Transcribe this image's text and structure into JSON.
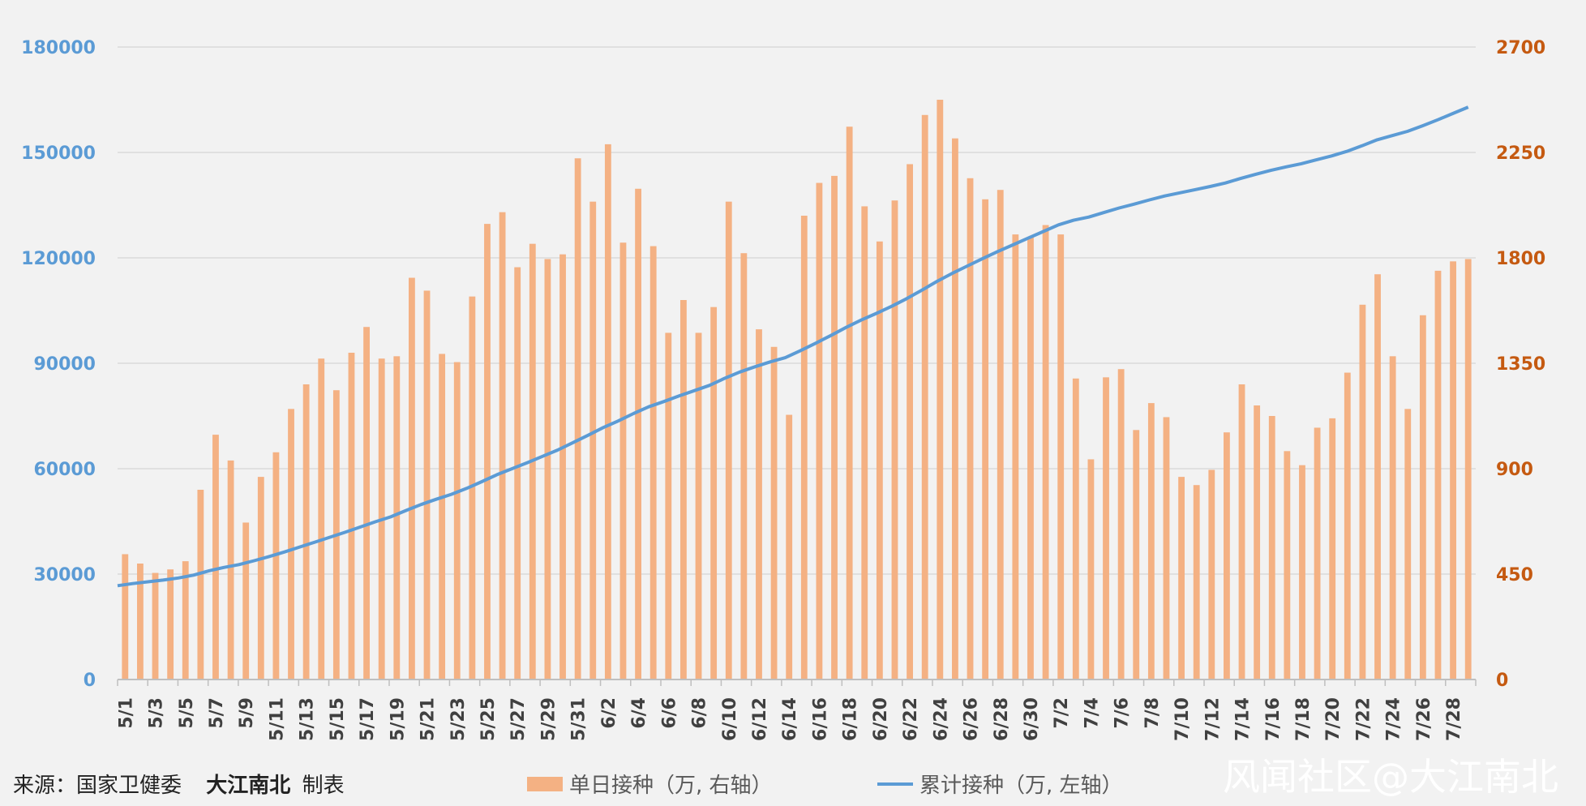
{
  "footer": {
    "source_prefix": "来源：国家卫健委",
    "author": "大江南北",
    "author_suffix": "制表"
  },
  "watermark": "风闻社区@大江南北",
  "chart_data": {
    "type": "bar+line",
    "title": "",
    "x": [
      "5/1",
      "5/2",
      "5/3",
      "5/4",
      "5/5",
      "5/6",
      "5/7",
      "5/8",
      "5/9",
      "5/10",
      "5/11",
      "5/12",
      "5/13",
      "5/14",
      "5/15",
      "5/16",
      "5/17",
      "5/18",
      "5/19",
      "5/20",
      "5/21",
      "5/22",
      "5/23",
      "5/24",
      "5/25",
      "5/26",
      "5/27",
      "5/28",
      "5/29",
      "5/30",
      "5/31",
      "6/1",
      "6/2",
      "6/3",
      "6/4",
      "6/5",
      "6/6",
      "6/7",
      "6/8",
      "6/9",
      "6/10",
      "6/11",
      "6/12",
      "6/13",
      "6/14",
      "6/15",
      "6/16",
      "6/17",
      "6/18",
      "6/19",
      "6/20",
      "6/21",
      "6/22",
      "6/23",
      "6/24",
      "6/25",
      "6/26",
      "6/27",
      "6/28",
      "6/29",
      "6/30",
      "7/1",
      "7/2",
      "7/3",
      "7/4",
      "7/5",
      "7/6",
      "7/7",
      "7/8",
      "7/9",
      "7/10",
      "7/11",
      "7/12",
      "7/13",
      "7/14",
      "7/15",
      "7/16",
      "7/17",
      "7/18",
      "7/19",
      "7/20",
      "7/21",
      "7/22",
      "7/23",
      "7/24",
      "7/25",
      "7/26",
      "7/27",
      "7/28",
      "7/29"
    ],
    "x_tick_labels": [
      "5/1",
      "5/3",
      "5/5",
      "5/7",
      "5/9",
      "5/11",
      "5/13",
      "5/15",
      "5/17",
      "5/19",
      "5/21",
      "5/23",
      "5/25",
      "5/27",
      "5/29",
      "5/31",
      "6/2",
      "6/4",
      "6/6",
      "6/8",
      "6/10",
      "6/12",
      "6/14",
      "6/16",
      "6/18",
      "6/20",
      "6/22",
      "6/24",
      "6/26",
      "6/28",
      "6/30",
      "7/2",
      "7/4",
      "7/6",
      "7/8",
      "7/10",
      "7/12",
      "7/14",
      "7/16",
      "7/18",
      "7/20",
      "7/22",
      "7/24",
      "7/26",
      "7/28"
    ],
    "series": [
      {
        "name": "单日接种（万, 右轴）",
        "kind": "bar",
        "axis": "right",
        "color": "#f4b183",
        "values": [
          535,
          495,
          455,
          470,
          505,
          810,
          1045,
          935,
          670,
          865,
          970,
          1155,
          1260,
          1370,
          1235,
          1395,
          1505,
          1370,
          1380,
          1715,
          1660,
          1390,
          1355,
          1635,
          1945,
          1995,
          1760,
          1860,
          1795,
          1815,
          2225,
          2040,
          2285,
          1865,
          2095,
          1850,
          1480,
          1620,
          1480,
          1590,
          2040,
          1820,
          1495,
          1420,
          1130,
          1980,
          2120,
          2150,
          2360,
          2020,
          1870,
          2045,
          2200,
          2410,
          2475,
          2310,
          2140,
          2050,
          2090,
          1900,
          1890,
          1940,
          1900,
          1285,
          940,
          1290,
          1325,
          1065,
          1180,
          1120,
          865,
          830,
          895,
          1055,
          1260,
          1170,
          1125,
          975,
          915,
          1075,
          1115,
          1310,
          1600,
          1730,
          1380,
          1155,
          1555,
          1745,
          1785,
          1795
        ]
      },
      {
        "name": "累计接种（万, 左轴）",
        "kind": "line",
        "axis": "left",
        "color": "#5b9bd5",
        "values": [
          26700,
          27300,
          27800,
          28300,
          28900,
          29700,
          30900,
          31900,
          32700,
          33800,
          35000,
          36300,
          37700,
          39100,
          40500,
          41900,
          43400,
          44900,
          46300,
          48100,
          49800,
          51300,
          52700,
          54400,
          56300,
          58300,
          60000,
          61700,
          63500,
          65300,
          67400,
          69500,
          71700,
          73600,
          75700,
          77600,
          79100,
          80700,
          82200,
          83700,
          85700,
          87500,
          89000,
          90400,
          91600,
          93600,
          95700,
          97900,
          100200,
          102300,
          104200,
          106200,
          108400,
          110800,
          113300,
          115600,
          117700,
          119800,
          121800,
          123700,
          125600,
          127500,
          129400,
          130700,
          131600,
          132900,
          134200,
          135300,
          136500,
          137600,
          138500,
          139400,
          140300,
          141300,
          142600,
          143800,
          144900,
          145900,
          146800,
          147900,
          149000,
          150300,
          151900,
          153600,
          154800,
          156000,
          157600,
          159300,
          161100,
          162900
        ]
      }
    ],
    "left_axis": {
      "min": 0,
      "max": 180000,
      "ticks": [
        0,
        30000,
        60000,
        90000,
        120000,
        150000,
        180000
      ],
      "color": "#5b9bd5"
    },
    "right_axis": {
      "min": 0,
      "max": 2700,
      "ticks": [
        0,
        450,
        900,
        1350,
        1800,
        2250,
        2700
      ],
      "color": "#c55a11"
    },
    "grid": true,
    "legend": {
      "position": "bottom"
    }
  }
}
